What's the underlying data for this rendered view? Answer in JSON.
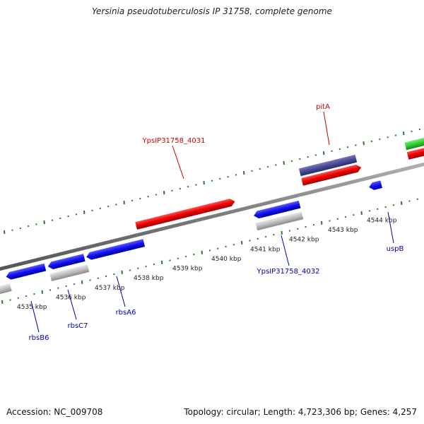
{
  "map": {
    "title": "Yersinia pseudotuberculosis IP 31758, complete genome",
    "accession_text": "Accession: NC_009708",
    "summary_text": "Topology: circular; Length: 4,723,306 bp; Genes: 4,257"
  },
  "ruler": {
    "labels": [
      "4535 kbp",
      "4536 kbp",
      "4537 kbp",
      "4538 kbp",
      "4539 kbp",
      "4540 kbp",
      "4541 kbp",
      "4542 kbp",
      "4543 kbp",
      "4544 kbp"
    ]
  },
  "genes": [
    {
      "label": "pitA",
      "color": "#cc0000"
    },
    {
      "label": "YpsIP31758_4031",
      "color": "#cc0000"
    },
    {
      "label": "YpsIP31758_4032",
      "color": "#0000aa"
    },
    {
      "label": "uspB",
      "color": "#0000aa"
    },
    {
      "label": "rbsA6",
      "color": "#0000aa"
    },
    {
      "label": "rbsC7",
      "color": "#0000aa"
    },
    {
      "label": "rbsB6",
      "color": "#0000aa"
    }
  ],
  "colors": {
    "backbone": "#888888",
    "tick": "#2a7a2a",
    "forward_red": "#ee0000",
    "reverse_blue": "#1010ee",
    "grey_feature": "#bdbdbd",
    "purple_feature": "#4b4b96",
    "green_feature": "#33cc33"
  }
}
